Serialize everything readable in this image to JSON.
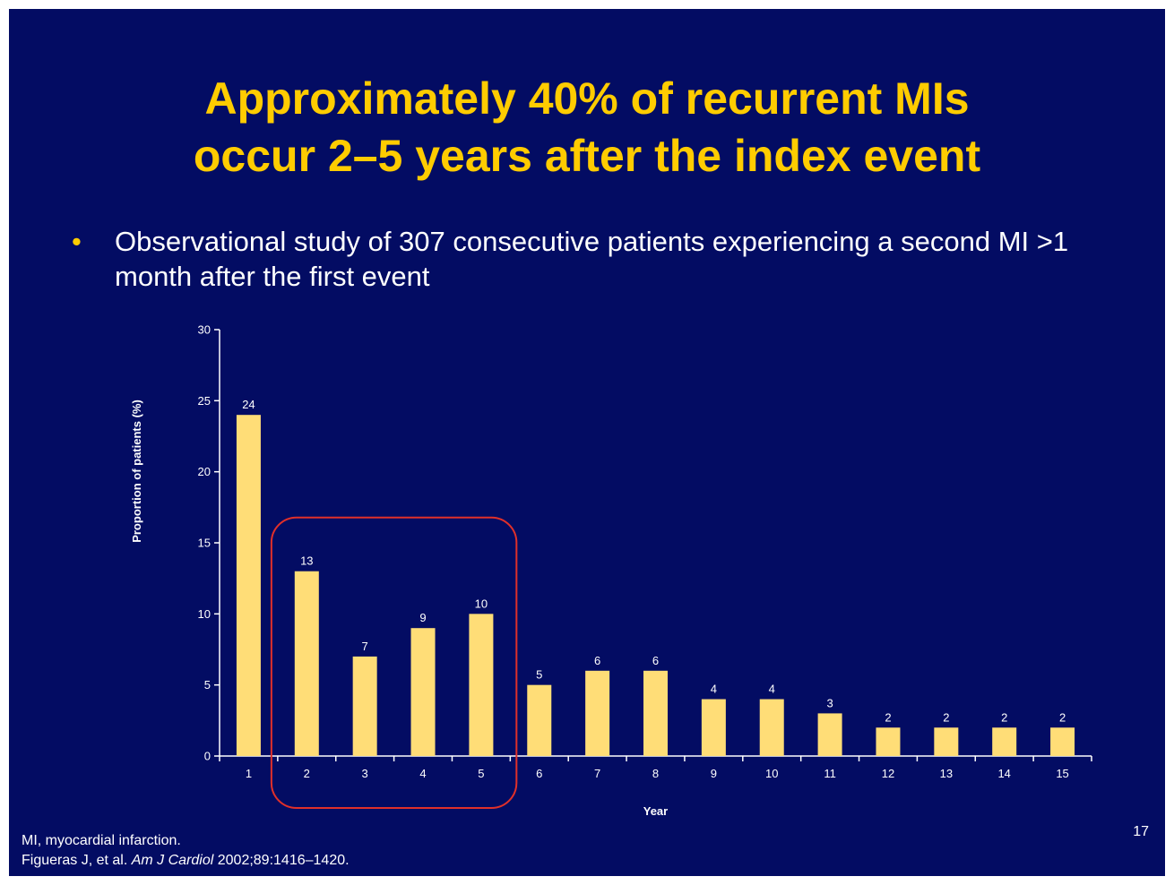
{
  "slide": {
    "title_line1": "Approximately 40% of recurrent MIs",
    "title_line2": "occur 2–5 years after the index event",
    "bullet_symbol": "•",
    "bullet_text": "Observational study of 307 consecutive patients experiencing a second MI >1 month after the first event",
    "footnote_line1": "MI, myocardial infarction.",
    "footnote_line2_pre": "Figueras J, et al. ",
    "footnote_line2_journal": "Am J Cardiol",
    "footnote_line2_post": " 2002;89:1416–1420.",
    "page_number": "17",
    "colors": {
      "background": "#030c63",
      "title": "#ffcc00",
      "bar": "#ffdd77",
      "highlight_box": "#e0302a",
      "text": "#ffffff"
    }
  },
  "chart_data": {
    "type": "bar",
    "title": "",
    "xlabel": "Year",
    "ylabel": "Proportion of patients (%)",
    "categories": [
      "1",
      "2",
      "3",
      "4",
      "5",
      "6",
      "7",
      "8",
      "9",
      "10",
      "11",
      "12",
      "13",
      "14",
      "15"
    ],
    "values": [
      24,
      13,
      7,
      9,
      10,
      5,
      6,
      6,
      4,
      4,
      3,
      2,
      2,
      2,
      2
    ],
    "ylim": [
      0,
      30
    ],
    "yticks": [
      0,
      5,
      10,
      15,
      20,
      25,
      30
    ],
    "grid": false,
    "legend": "none",
    "highlight_categories": [
      "2",
      "3",
      "4",
      "5"
    ]
  }
}
